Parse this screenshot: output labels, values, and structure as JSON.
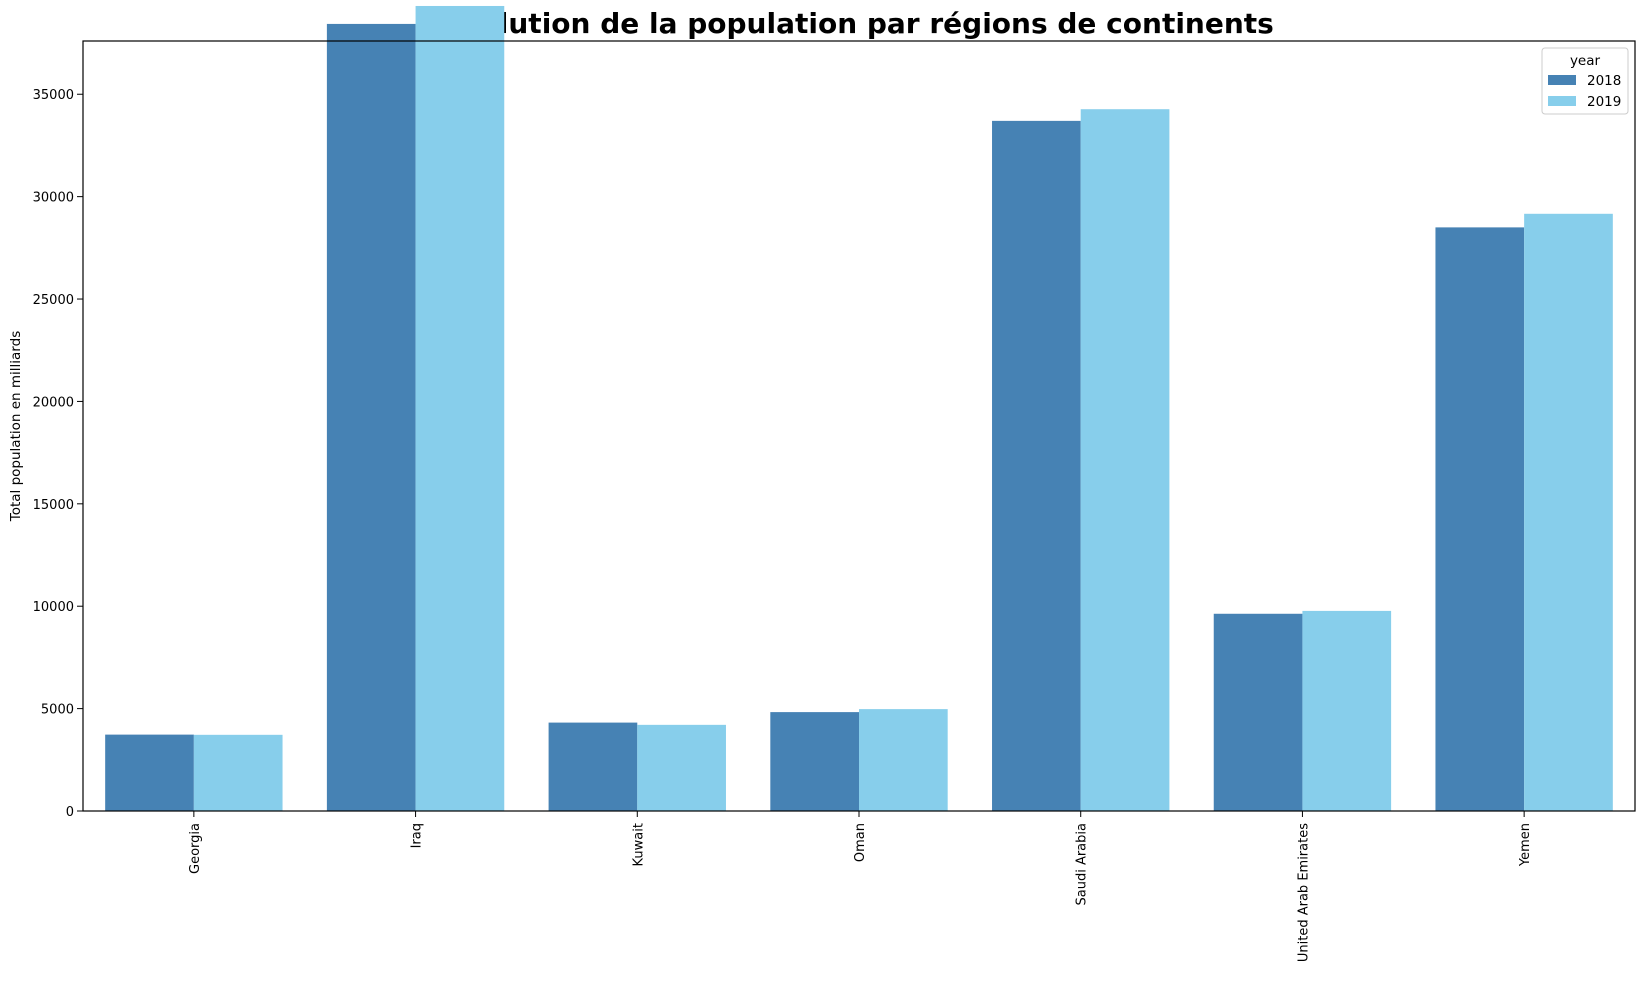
{
  "chart_data": {
    "type": "bar",
    "title": "Evolution de la population par régions de continents",
    "xlabel": "",
    "ylabel": "Total population en milliards",
    "categories": [
      "Georgia",
      "Iraq",
      "Kuwait",
      "Oman",
      "Saudi Arabia",
      "United Arab Emirates",
      "Yemen"
    ],
    "series": [
      {
        "name": "2018",
        "color": "#4682b4",
        "values": [
          3730,
          38434,
          4317,
          4829,
          33700,
          9631,
          28499
        ]
      },
      {
        "name": "2019",
        "color": "#87ceeb",
        "values": [
          3720,
          39310,
          4207,
          4975,
          34269,
          9771,
          29162
        ]
      }
    ],
    "yticks": [
      0,
      5000,
      10000,
      15000,
      20000,
      25000,
      30000,
      35000
    ],
    "ylim": [
      0,
      37600
    ],
    "legend": {
      "title": "year",
      "position": "top-right"
    },
    "grid": false
  }
}
